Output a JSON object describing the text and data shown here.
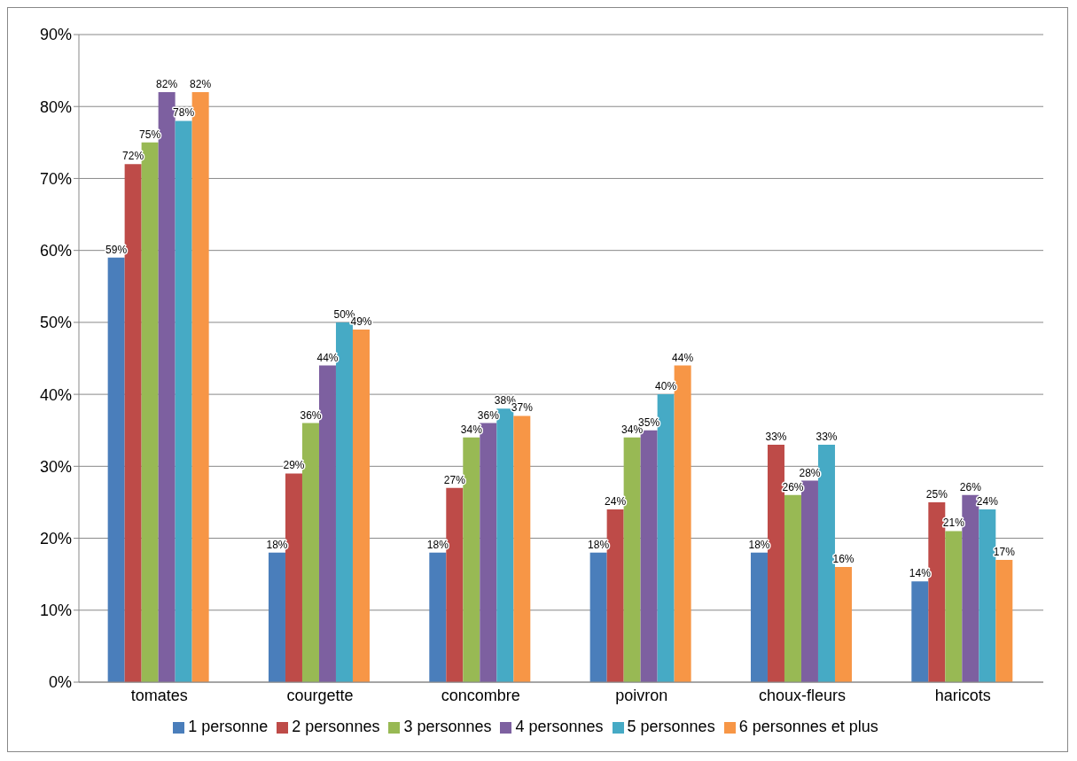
{
  "chart_data": {
    "type": "bar",
    "categories": [
      "tomates",
      "courgette",
      "concombre",
      "poivron",
      "choux-fleurs",
      "haricots"
    ],
    "series": [
      {
        "name": "1 personne",
        "color": "#4a7ebb",
        "values": [
          59,
          18,
          18,
          18,
          18,
          14
        ],
        "value_labels": [
          "59%",
          "18%",
          "18%",
          "18%",
          "18%",
          "14%"
        ]
      },
      {
        "name": "2 personnes",
        "color": "#be4b48",
        "values": [
          72,
          29,
          27,
          24,
          33,
          25
        ],
        "value_labels": [
          "72%",
          "29%",
          "27%",
          "24%",
          "33%",
          "25%"
        ]
      },
      {
        "name": "3 personnes",
        "color": "#98b954",
        "values": [
          75,
          36,
          34,
          34,
          26,
          21
        ],
        "value_labels": [
          "75%",
          "36%",
          "34%",
          "34%",
          "26%",
          "21%"
        ]
      },
      {
        "name": "4 personnes",
        "color": "#7d60a0",
        "values": [
          82,
          44,
          36,
          35,
          28,
          26
        ],
        "value_labels": [
          "82%",
          "44%",
          "36%",
          "35%",
          "28%",
          "26%"
        ]
      },
      {
        "name": "5 personnes",
        "color": "#46aac5",
        "values": [
          78,
          50,
          38,
          40,
          33,
          24
        ],
        "value_labels": [
          "78%",
          "50%",
          "38%",
          "40%",
          "33%",
          "24%"
        ]
      },
      {
        "name": "6 personnes et plus",
        "color": "#f79646",
        "values": [
          82,
          49,
          37,
          44,
          16,
          17
        ],
        "value_labels": [
          "82%",
          "49%",
          "37%",
          "44%",
          "16%",
          "17%"
        ]
      }
    ],
    "ylim": [
      0,
      90
    ],
    "yticks": [
      {
        "value": 0,
        "label": "0%"
      },
      {
        "value": 10,
        "label": "10%"
      },
      {
        "value": 20,
        "label": "20%"
      },
      {
        "value": 30,
        "label": "30%"
      },
      {
        "value": 40,
        "label": "40%"
      },
      {
        "value": 50,
        "label": "50%"
      },
      {
        "value": 60,
        "label": "60%"
      },
      {
        "value": 70,
        "label": "70%"
      },
      {
        "value": 80,
        "label": "80%"
      },
      {
        "value": 90,
        "label": "90%"
      }
    ],
    "grid": "y",
    "legend": "bottom"
  }
}
